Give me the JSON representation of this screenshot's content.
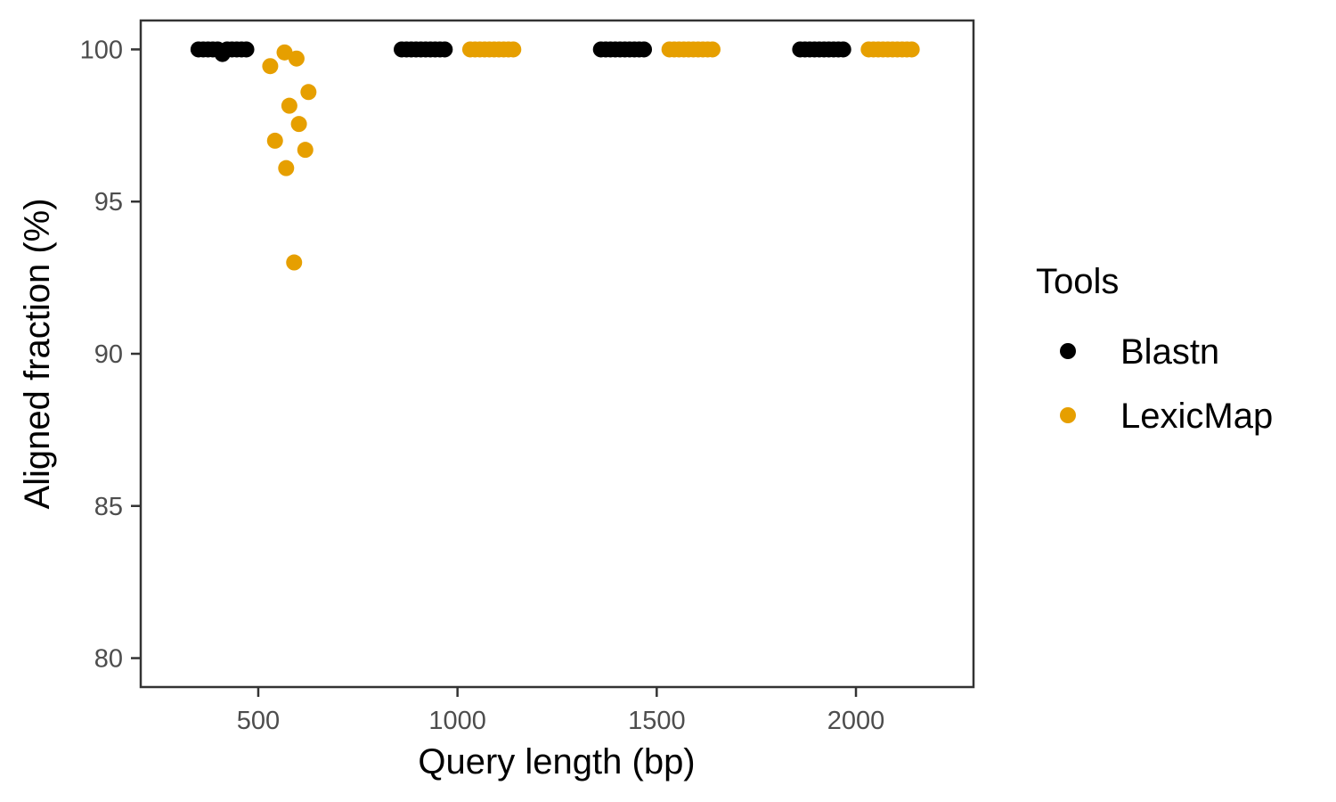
{
  "chart_data": {
    "type": "scatter",
    "title": "",
    "xlabel": "Query length (bp)",
    "ylabel": "Aligned fraction (%)",
    "xlim": [
      205,
      2295
    ],
    "ylim": [
      79.05,
      100.95
    ],
    "x_ticks": [
      500,
      1000,
      1500,
      2000
    ],
    "y_ticks": [
      80,
      85,
      90,
      95,
      100
    ],
    "grid": false,
    "legend": {
      "title": "Tools",
      "position": "right"
    },
    "series": [
      {
        "name": "Blastn",
        "color": "#000000",
        "x": [
          350,
          362,
          374,
          386,
          398,
          410,
          422,
          434,
          446,
          458,
          470,
          860,
          872,
          884,
          896,
          908,
          920,
          932,
          944,
          956,
          968,
          1360,
          1372,
          1384,
          1396,
          1408,
          1420,
          1432,
          1444,
          1456,
          1468,
          1860,
          1872,
          1884,
          1896,
          1908,
          1920,
          1932,
          1944,
          1956,
          1968
        ],
        "y": [
          100,
          100,
          100,
          100,
          100,
          99.85,
          100,
          100,
          100,
          100,
          100,
          100,
          100,
          100,
          100,
          100,
          100,
          100,
          100,
          100,
          100,
          100,
          100,
          100,
          100,
          100,
          100,
          100,
          100,
          100,
          100,
          100,
          100,
          100,
          100,
          100,
          100,
          100,
          100,
          100,
          100
        ]
      },
      {
        "name": "LexicMap",
        "color": "#E69F00",
        "x": [
          530,
          542,
          566,
          570,
          578,
          590,
          596,
          602,
          618,
          626,
          1032,
          1044,
          1056,
          1068,
          1080,
          1092,
          1104,
          1116,
          1128,
          1140,
          1532,
          1544,
          1556,
          1568,
          1580,
          1592,
          1604,
          1616,
          1628,
          1640,
          2032,
          2044,
          2056,
          2068,
          2080,
          2092,
          2104,
          2116,
          2128,
          2140
        ],
        "y": [
          99.45,
          97.0,
          99.9,
          96.1,
          98.15,
          93.0,
          99.7,
          97.55,
          96.7,
          98.6,
          100,
          100,
          100,
          100,
          100,
          100,
          100,
          100,
          100,
          100,
          100,
          100,
          100,
          100,
          100,
          100,
          100,
          100,
          100,
          100,
          100,
          100,
          100,
          100,
          100,
          100,
          100,
          100,
          100,
          100
        ]
      }
    ]
  }
}
